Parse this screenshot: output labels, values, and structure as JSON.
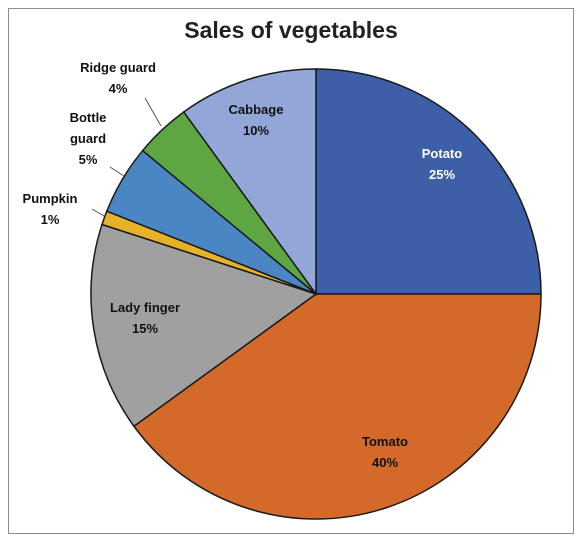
{
  "chart_data": {
    "type": "pie",
    "title": "Sales of vegetables",
    "slices": [
      {
        "name": "Potato",
        "value": 25,
        "label": "25%",
        "color": "#3c5fa8"
      },
      {
        "name": "Tomato",
        "value": 40,
        "label": "40%",
        "color": "#d46a2a"
      },
      {
        "name": "Lady finger",
        "value": 15,
        "label": "15%",
        "color": "#a0a0a0"
      },
      {
        "name": "Pumpkin",
        "value": 1,
        "label": "1%",
        "color": "#e6b22a"
      },
      {
        "name": "Bottle guard",
        "value": 5,
        "label": "5%",
        "color": "#4a86c4"
      },
      {
        "name": "Ridge guard",
        "value": 4,
        "label": "4%",
        "color": "#5da641"
      },
      {
        "name": "Cabbage",
        "value": 10,
        "label": "10%",
        "color": "#92a6d8"
      }
    ]
  }
}
